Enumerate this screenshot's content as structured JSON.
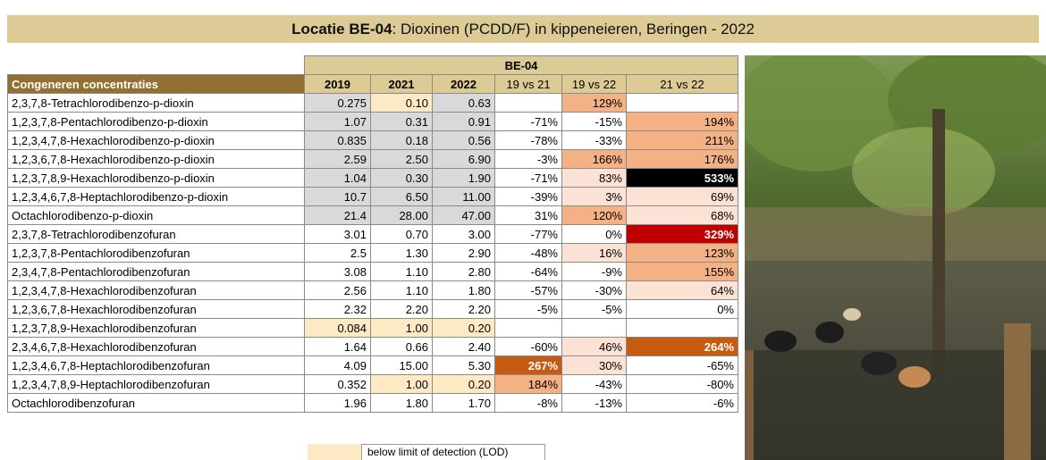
{
  "header": {
    "title_bold": "Locatie BE-04",
    "title_rest": ": Dioxinen (PCDD/F) in kippeneieren, Beringen - 2022"
  },
  "table": {
    "group_header": "BE-04",
    "columns": [
      "Congeneren concentraties",
      "2019",
      "2021",
      "2022",
      "19 vs 21",
      "19 vs 22",
      "21 vs 22"
    ],
    "rows": [
      [
        "2,3,7,8-Tetrachlorodibenzo-p-dioxin",
        "0.275",
        "0.10",
        "0.63",
        null,
        "129%",
        null
      ],
      [
        "1,2,3,7,8-Pentachlorodibenzo-p-dioxin",
        "1.07",
        "0.31",
        "0.91",
        "-71%",
        "-15%",
        "194%"
      ],
      [
        "1,2,3,4,7,8-Hexachlorodibenzo-p-dioxin",
        "0.835",
        "0.18",
        "0.56",
        "-78%",
        "-33%",
        "211%"
      ],
      [
        "1,2,3,6,7,8-Hexachlorodibenzo-p-dioxin",
        "2.59",
        "2.50",
        "6.90",
        "-3%",
        "166%",
        "176%"
      ],
      [
        "1,2,3,7,8,9-Hexachlorodibenzo-p-dioxin",
        "1.04",
        "0.30",
        "1.90",
        "-71%",
        "83%",
        "533%"
      ],
      [
        "1,2,3,4,6,7,8-Heptachlorodibenzo-p-dioxin",
        "10.7",
        "6.50",
        "11.00",
        "-39%",
        "3%",
        "69%"
      ],
      [
        "Octachlorodibenzo-p-dioxin",
        "21.4",
        "28.00",
        "47.00",
        "31%",
        "120%",
        "68%"
      ],
      [
        "2,3,7,8-Tetrachlorodibenzofuran",
        "3.01",
        "0.70",
        "3.00",
        "-77%",
        "0%",
        "329%"
      ],
      [
        "1,2,3,7,8-Pentachlorodibenzofuran",
        "2.5",
        "1.30",
        "2.90",
        "-48%",
        "16%",
        "123%"
      ],
      [
        "2,3,4,7,8-Pentachlorodibenzofuran",
        "3.08",
        "1.10",
        "2.80",
        "-64%",
        "-9%",
        "155%"
      ],
      [
        "1,2,3,4,7,8-Hexachlorodibenzofuran",
        "2.56",
        "1.10",
        "1.80",
        "-57%",
        "-30%",
        "64%"
      ],
      [
        "1,2,3,6,7,8-Hexachlorodibenzofuran",
        "2.32",
        "2.20",
        "2.20",
        "-5%",
        "-5%",
        "0%"
      ],
      [
        "1,2,3,7,8,9-Hexachlorodibenzofuran",
        "0.084",
        "1.00",
        "0.20",
        null,
        null,
        null
      ],
      [
        "2,3,4,6,7,8-Hexachlorodibenzofuran",
        "1.64",
        "0.66",
        "2.40",
        "-60%",
        "46%",
        "264%"
      ],
      [
        "1,2,3,4,6,7,8-Heptachlorodibenzofuran",
        "4.09",
        "15.00",
        "5.30",
        "267%",
        "30%",
        "-65%"
      ],
      [
        "1,2,3,4,7,8,9-Heptachlorodibenzofuran",
        "0.352",
        "1.00",
        "0.20",
        "184%",
        "-43%",
        "-80%"
      ],
      [
        "Octachlorodibenzofuran",
        "1.96",
        "1.80",
        "1.70",
        "-8%",
        "-13%",
        "-6%"
      ]
    ]
  },
  "legend": {
    "label": "below limit of detection (LOD)"
  }
}
